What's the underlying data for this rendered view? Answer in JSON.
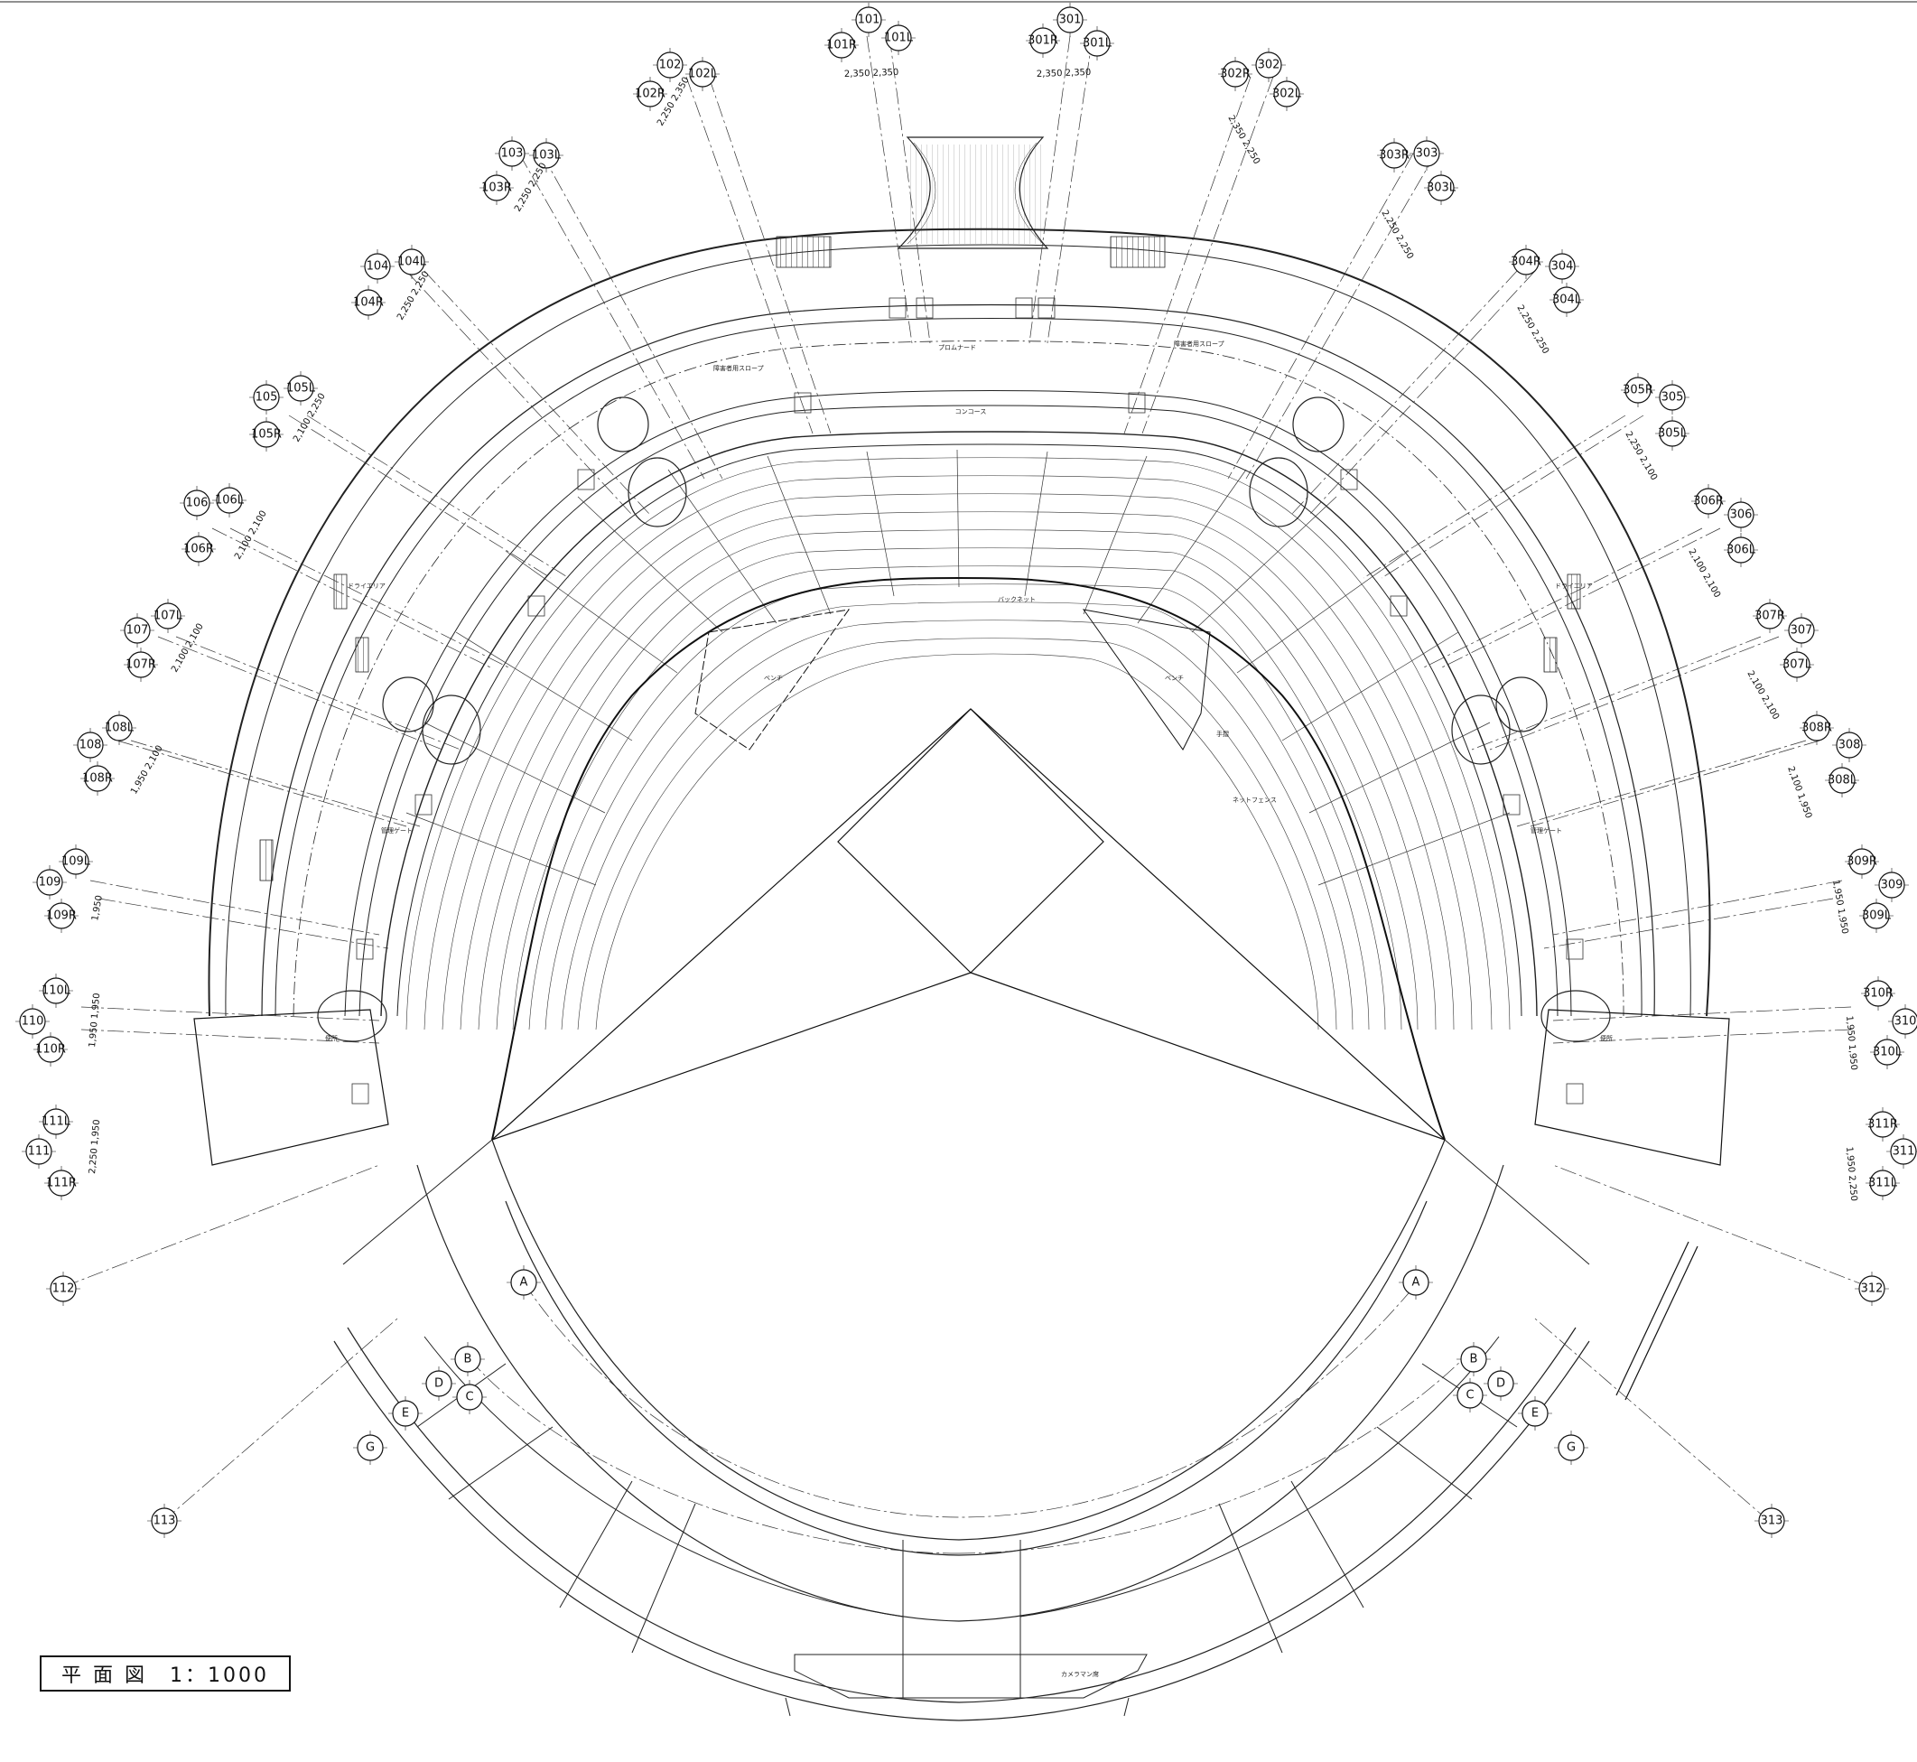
{
  "drawing": {
    "title": "平 面 図　1：1000"
  },
  "grid_bubbles": {
    "left": [
      {
        "main": "101",
        "r": "101R",
        "l": "101L",
        "dim": "2,350 2,350"
      },
      {
        "main": "102",
        "r": "102R",
        "l": "102L",
        "dim": "2,250 2,350"
      },
      {
        "main": "103",
        "r": "103R",
        "l": "103L",
        "dim": "2,250 2,250"
      },
      {
        "main": "104",
        "r": "104R",
        "l": "104L",
        "dim": "2,250 2,250"
      },
      {
        "main": "105",
        "r": "105R",
        "l": "105L",
        "dim": "2,100 2,250"
      },
      {
        "main": "106",
        "r": "106R",
        "l": "106L",
        "dim": "2,100 2,100"
      },
      {
        "main": "107",
        "r": "107R",
        "l": "107L",
        "dim": "2,100 2,100"
      },
      {
        "main": "108",
        "r": "108R",
        "l": "108L",
        "dim": "1,950 2,100"
      },
      {
        "main": "109",
        "r": "109R",
        "l": "109L",
        "dim": "1,950"
      },
      {
        "main": "110",
        "r": "110R",
        "l": "110L",
        "dim": "1,950 1,950"
      },
      {
        "main": "111",
        "r": "111R",
        "l": "111L",
        "dim": "2,250 1,950"
      }
    ],
    "right": [
      {
        "main": "301",
        "r": "301R",
        "l": "301L",
        "dim": "2,350 2,350"
      },
      {
        "main": "302",
        "r": "302R",
        "l": "302L",
        "dim": "2,350 2,250"
      },
      {
        "main": "303",
        "r": "303R",
        "l": "303L",
        "dim": "2,250 2,250"
      },
      {
        "main": "304",
        "r": "304R",
        "l": "304L",
        "dim": "2,250 2,250"
      },
      {
        "main": "305",
        "r": "305R",
        "l": "305L",
        "dim": "2,250 2,100"
      },
      {
        "main": "306",
        "r": "306R",
        "l": "306L",
        "dim": "2,100 2,100"
      },
      {
        "main": "307",
        "r": "307R",
        "l": "307L",
        "dim": "2,100 2,100"
      },
      {
        "main": "308",
        "r": "308R",
        "l": "308L",
        "dim": "2,100 1,950"
      },
      {
        "main": "309",
        "r": "309R",
        "l": "309L",
        "dim": "1,950 1,950"
      },
      {
        "main": "310",
        "r": "310R",
        "l": "310L",
        "dim": "1,950 1,950"
      },
      {
        "main": "311",
        "r": "311R",
        "l": "311L",
        "dim": "1,950 2,250"
      }
    ],
    "singles": [
      "112",
      "113",
      "312",
      "313"
    ],
    "letters_left": [
      "A",
      "B",
      "C",
      "D",
      "E",
      "G"
    ],
    "letters_right": [
      "A",
      "B",
      "C",
      "D",
      "E",
      "G"
    ]
  },
  "room_labels": {
    "promenade": "プロムナード",
    "concourse": "コンコース",
    "slope_left": "障害者用スロープ",
    "slope_right": "障害者用スロープ",
    "dry_area": "ドライエリア",
    "gate": "管理ゲート",
    "backnet": "バックネット",
    "net_fence": "ネットフェンス",
    "handrail": "手摺",
    "camera": "カメラマン席",
    "bench": "ベンチ",
    "toilet": "便所"
  }
}
